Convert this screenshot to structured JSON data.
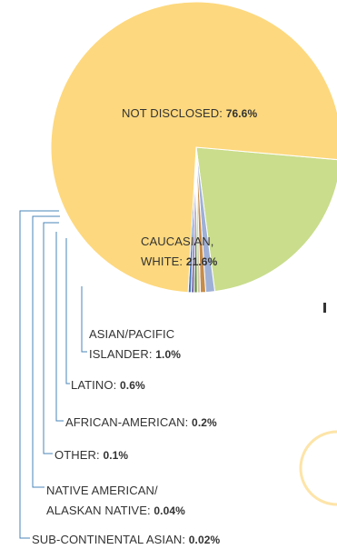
{
  "chart_data": {
    "type": "pie",
    "slices": [
      {
        "label": "NOT DISCLOSED:",
        "value": 76.6,
        "display": "76.6%",
        "color": "#fdd87e"
      },
      {
        "label": "CAUCASIAN, WHITE:",
        "value": 21.6,
        "display": "21.6%",
        "color": "#c9dd8c"
      },
      {
        "label": "ASIAN/PACIFIC ISLANDER:",
        "value": 1.0,
        "display": "1.0%",
        "color": "#9fb0d6"
      },
      {
        "label": "LATINO:",
        "value": 0.6,
        "display": "0.6%",
        "color": "#c68c4a"
      },
      {
        "label": "AFRICAN-AMERICAN:",
        "value": 0.2,
        "display": "0.2%",
        "color": "#cfc8a6"
      },
      {
        "label": "OTHER:",
        "value": 0.1,
        "display": "0.1%",
        "color": "#5d8a35"
      },
      {
        "label": "NATIVE AMERICAN/ ALASKAN NATIVE:",
        "value": 0.04,
        "display": "0.04%",
        "color": "#7a6aa8"
      },
      {
        "label": "SUB-CONTINENTAL ASIAN:",
        "value": 0.02,
        "display": "0.02%",
        "color": "#4a78b8"
      }
    ]
  },
  "labels": {
    "not_disclosed": {
      "line1": "NOT DISCLOSED:",
      "value": "76.6%"
    },
    "caucasian": {
      "line1": "CAUCASIAN,",
      "line2": "WHITE:",
      "value": "21.6%"
    },
    "asian_pacific": {
      "line1": "ASIAN/PACIFIC",
      "line2": "ISLANDER:",
      "value": "1.0%"
    },
    "latino": {
      "line1": "LATINO:",
      "value": "0.6%"
    },
    "african_american": {
      "line1": "AFRICAN-AMERICAN:",
      "value": "0.2%"
    },
    "other": {
      "line1": "OTHER:",
      "value": "0.1%"
    },
    "native_american": {
      "line1": "NATIVE AMERICAN/",
      "line2": "ALASKAN NATIVE:",
      "value": "0.04%"
    },
    "sub_continental": {
      "line1": "SUB-CONTINENTAL ASIAN:",
      "value": "0.02%"
    }
  },
  "colors": {
    "leader_line": "#4a86b8",
    "text": "#333333",
    "slice_border": "#ffffff"
  }
}
